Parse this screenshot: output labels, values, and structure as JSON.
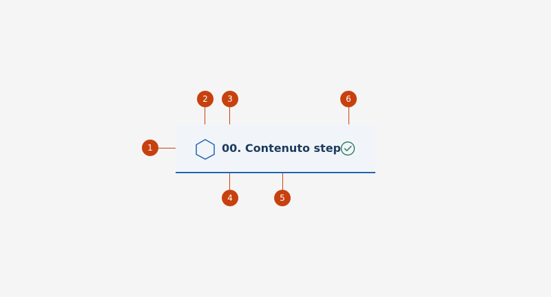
{
  "step": {
    "label": "00. Contenuto step",
    "leading_icon": "hexagon-icon",
    "trailing_icon": "check-circle-icon"
  },
  "markers": [
    "1",
    "2",
    "3",
    "4",
    "5",
    "6"
  ],
  "colors": {
    "marker": "#c7410f",
    "step_background": "#f1f5f9",
    "step_border": "#1f63b3",
    "label_text": "#1c3a5e",
    "icon_primary": "#1f63b3",
    "icon_success": "#2e7d5b"
  }
}
